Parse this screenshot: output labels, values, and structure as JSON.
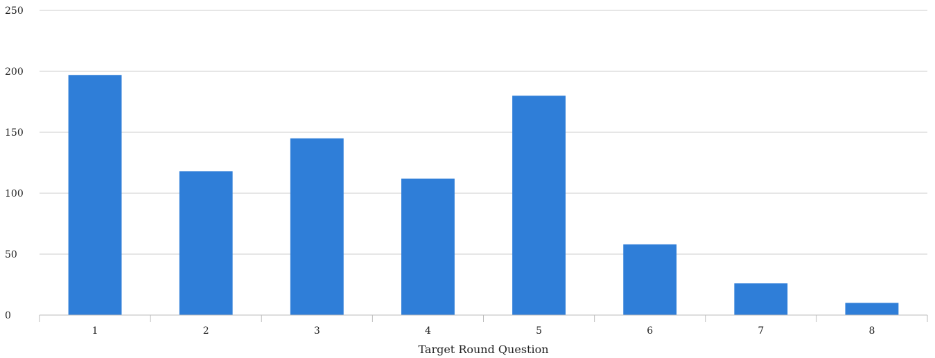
{
  "chart_data": {
    "type": "bar",
    "title": "",
    "xlabel": "Target Round Question",
    "ylabel": "",
    "categories": [
      "1",
      "2",
      "3",
      "4",
      "5",
      "6",
      "7",
      "8"
    ],
    "values": [
      197,
      118,
      145,
      112,
      180,
      58,
      26,
      10
    ],
    "ylim": [
      0,
      250
    ],
    "yticks": [
      0,
      50,
      100,
      150,
      200,
      250
    ],
    "grid": true,
    "legend": "none",
    "bar_color": "#2f7ed8"
  }
}
